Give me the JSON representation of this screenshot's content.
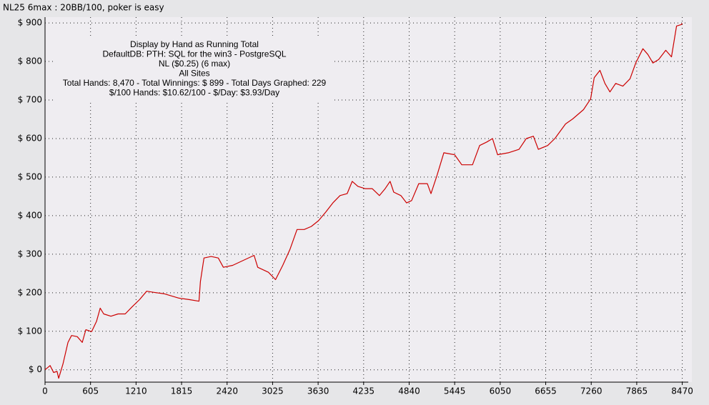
{
  "chart_data": {
    "type": "line",
    "title": "NL25 6max : 20BB/100, poker is easy",
    "annotations": [
      "Display by Hand as Running Total",
      "DefaultDB: PTH: SQL for the win3 - PostgreSQL",
      "NL ($0.25) (6 max)",
      "All Sites",
      "Total Hands: 8,470 - Total Winnings: $ 899 - Total Days Graphed: 229",
      "$/100 Hands: $10.62/100 - $/Day: $3.93/Day"
    ],
    "color": "#cc0000",
    "grid": true,
    "xlim": [
      0,
      8550
    ],
    "ylim": [
      -32,
      915
    ],
    "xticks": [
      0,
      605,
      1210,
      1815,
      2420,
      3025,
      3630,
      4235,
      4840,
      5445,
      6050,
      6655,
      7260,
      7865,
      8470
    ],
    "yticks": [
      {
        "value": 0,
        "label": "$ 0"
      },
      {
        "value": 100,
        "label": "$ 100"
      },
      {
        "value": 200,
        "label": "$ 200"
      },
      {
        "value": 300,
        "label": "$ 300"
      },
      {
        "value": 400,
        "label": "$ 400"
      },
      {
        "value": 500,
        "label": "$ 500"
      },
      {
        "value": 600,
        "label": "$ 600"
      },
      {
        "value": 700,
        "label": "$ 700"
      },
      {
        "value": 800,
        "label": "$ 800"
      },
      {
        "value": 900,
        "label": "$ 900"
      }
    ],
    "x": [
      0,
      67,
      114,
      160,
      181,
      238,
      305,
      352,
      428,
      495,
      542,
      619,
      685,
      733,
      780,
      876,
      971,
      1066,
      1161,
      1256,
      1351,
      1447,
      1589,
      1780,
      1922,
      2046,
      2065,
      2113,
      2208,
      2303,
      2370,
      2494,
      2636,
      2779,
      2827,
      2970,
      3064,
      3160,
      3255,
      3350,
      3445,
      3540,
      3636,
      3731,
      3826,
      3921,
      4016,
      4083,
      4159,
      4254,
      4349,
      4445,
      4521,
      4587,
      4635,
      4730,
      4806,
      4873,
      4968,
      5082,
      5130,
      5206,
      5301,
      5444,
      5539,
      5682,
      5777,
      5872,
      5948,
      6015,
      6158,
      6300,
      6396,
      6491,
      6557,
      6681,
      6776,
      6919,
      7014,
      7157,
      7252,
      7300,
      7376,
      7442,
      7509,
      7585,
      7681,
      7776,
      7852,
      7947,
      8013,
      8080,
      8156,
      8251,
      8327,
      8394,
      8460,
      8470
    ],
    "values": [
      0,
      11,
      -7,
      -4,
      -22,
      15,
      71,
      89,
      86,
      71,
      104,
      99,
      126,
      160,
      145,
      139,
      145,
      145,
      164,
      182,
      204,
      201,
      197,
      186,
      182,
      178,
      229,
      290,
      294,
      290,
      266,
      271,
      284,
      297,
      266,
      253,
      234,
      271,
      312,
      364,
      364,
      372,
      387,
      409,
      433,
      452,
      457,
      489,
      476,
      470,
      470,
      452,
      470,
      489,
      461,
      452,
      433,
      439,
      483,
      483,
      457,
      502,
      563,
      558,
      532,
      532,
      582,
      591,
      600,
      558,
      563,
      572,
      600,
      606,
      572,
      582,
      600,
      638,
      651,
      675,
      703,
      758,
      777,
      743,
      721,
      743,
      736,
      755,
      796,
      833,
      818,
      796,
      805,
      829,
      812,
      892,
      896,
      899
    ]
  }
}
